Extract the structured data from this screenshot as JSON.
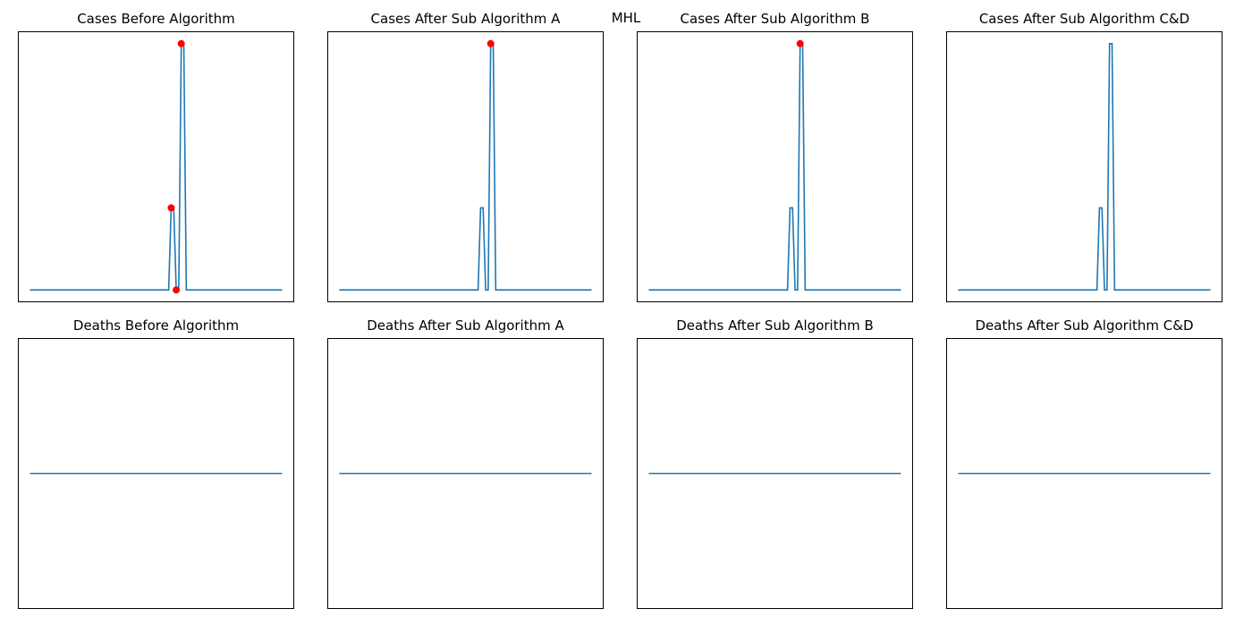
{
  "figure": {
    "suptitle": "MHL"
  },
  "colors": {
    "line": "#1f77b4",
    "highlight": "#ff0000"
  },
  "chart_data": [
    {
      "type": "line",
      "title": "Cases Before Algorithm",
      "axes_visible": false,
      "x": [
        0,
        1,
        2,
        3,
        4,
        5,
        6,
        7,
        8,
        9,
        10,
        11,
        12,
        13,
        14,
        15,
        16,
        17,
        18,
        19,
        20,
        21,
        22,
        23,
        24,
        25,
        26,
        27,
        28,
        29,
        30,
        31,
        32,
        33,
        34,
        35,
        36,
        37,
        38,
        39,
        40,
        41,
        42,
        43,
        44,
        45,
        46,
        47,
        48,
        49,
        50,
        51,
        52,
        53,
        54,
        55,
        56,
        57,
        58,
        59,
        60,
        61,
        62,
        63,
        64,
        65,
        66,
        67,
        68,
        69,
        70,
        71,
        72,
        73,
        74,
        75,
        76,
        77,
        78,
        79,
        80,
        81,
        82,
        83,
        84,
        85,
        86,
        87,
        88,
        89,
        90,
        91,
        92,
        93,
        94,
        95,
        96,
        97,
        98,
        99,
        100
      ],
      "series": [
        {
          "values": [
            0,
            0,
            0,
            0,
            0,
            0,
            0,
            0,
            0,
            0,
            0,
            0,
            0,
            0,
            0,
            0,
            0,
            0,
            0,
            0,
            0,
            0,
            0,
            0,
            0,
            0,
            0,
            0,
            0,
            0,
            0,
            0,
            0,
            0,
            0,
            0,
            0,
            0,
            0,
            0,
            0,
            0,
            0,
            0,
            0,
            0,
            0,
            0,
            0,
            0,
            0,
            0,
            0,
            0,
            0,
            0,
            1,
            1,
            0,
            0,
            3,
            3,
            0,
            0,
            0,
            0,
            0,
            0,
            0,
            0,
            0,
            0,
            0,
            0,
            0,
            0,
            0,
            0,
            0,
            0,
            0,
            0,
            0,
            0,
            0,
            0,
            0,
            0,
            0,
            0,
            0,
            0,
            0,
            0,
            0,
            0,
            0,
            0,
            0,
            0,
            0
          ]
        }
      ],
      "highlight_points": [
        {
          "x": 56,
          "y": 1
        },
        {
          "x": 58,
          "y": 0
        },
        {
          "x": 60,
          "y": 3
        }
      ],
      "ylim": [
        -0.15,
        3.15
      ]
    },
    {
      "type": "line",
      "title": "Cases After Sub Algorithm A",
      "axes_visible": false,
      "x": [
        0,
        1,
        2,
        3,
        4,
        5,
        6,
        7,
        8,
        9,
        10,
        11,
        12,
        13,
        14,
        15,
        16,
        17,
        18,
        19,
        20,
        21,
        22,
        23,
        24,
        25,
        26,
        27,
        28,
        29,
        30,
        31,
        32,
        33,
        34,
        35,
        36,
        37,
        38,
        39,
        40,
        41,
        42,
        43,
        44,
        45,
        46,
        47,
        48,
        49,
        50,
        51,
        52,
        53,
        54,
        55,
        56,
        57,
        58,
        59,
        60,
        61,
        62,
        63,
        64,
        65,
        66,
        67,
        68,
        69,
        70,
        71,
        72,
        73,
        74,
        75,
        76,
        77,
        78,
        79,
        80,
        81,
        82,
        83,
        84,
        85,
        86,
        87,
        88,
        89,
        90,
        91,
        92,
        93,
        94,
        95,
        96,
        97,
        98,
        99,
        100
      ],
      "series": [
        {
          "values": [
            0,
            0,
            0,
            0,
            0,
            0,
            0,
            0,
            0,
            0,
            0,
            0,
            0,
            0,
            0,
            0,
            0,
            0,
            0,
            0,
            0,
            0,
            0,
            0,
            0,
            0,
            0,
            0,
            0,
            0,
            0,
            0,
            0,
            0,
            0,
            0,
            0,
            0,
            0,
            0,
            0,
            0,
            0,
            0,
            0,
            0,
            0,
            0,
            0,
            0,
            0,
            0,
            0,
            0,
            0,
            0,
            1,
            1,
            0,
            0,
            3,
            3,
            0,
            0,
            0,
            0,
            0,
            0,
            0,
            0,
            0,
            0,
            0,
            0,
            0,
            0,
            0,
            0,
            0,
            0,
            0,
            0,
            0,
            0,
            0,
            0,
            0,
            0,
            0,
            0,
            0,
            0,
            0,
            0,
            0,
            0,
            0,
            0,
            0,
            0,
            0
          ]
        }
      ],
      "highlight_points": [
        {
          "x": 60,
          "y": 3
        }
      ],
      "ylim": [
        -0.15,
        3.15
      ]
    },
    {
      "type": "line",
      "title": "Cases After Sub Algorithm B",
      "axes_visible": false,
      "x": [
        0,
        1,
        2,
        3,
        4,
        5,
        6,
        7,
        8,
        9,
        10,
        11,
        12,
        13,
        14,
        15,
        16,
        17,
        18,
        19,
        20,
        21,
        22,
        23,
        24,
        25,
        26,
        27,
        28,
        29,
        30,
        31,
        32,
        33,
        34,
        35,
        36,
        37,
        38,
        39,
        40,
        41,
        42,
        43,
        44,
        45,
        46,
        47,
        48,
        49,
        50,
        51,
        52,
        53,
        54,
        55,
        56,
        57,
        58,
        59,
        60,
        61,
        62,
        63,
        64,
        65,
        66,
        67,
        68,
        69,
        70,
        71,
        72,
        73,
        74,
        75,
        76,
        77,
        78,
        79,
        80,
        81,
        82,
        83,
        84,
        85,
        86,
        87,
        88,
        89,
        90,
        91,
        92,
        93,
        94,
        95,
        96,
        97,
        98,
        99,
        100
      ],
      "series": [
        {
          "values": [
            0,
            0,
            0,
            0,
            0,
            0,
            0,
            0,
            0,
            0,
            0,
            0,
            0,
            0,
            0,
            0,
            0,
            0,
            0,
            0,
            0,
            0,
            0,
            0,
            0,
            0,
            0,
            0,
            0,
            0,
            0,
            0,
            0,
            0,
            0,
            0,
            0,
            0,
            0,
            0,
            0,
            0,
            0,
            0,
            0,
            0,
            0,
            0,
            0,
            0,
            0,
            0,
            0,
            0,
            0,
            0,
            1,
            1,
            0,
            0,
            3,
            3,
            0,
            0,
            0,
            0,
            0,
            0,
            0,
            0,
            0,
            0,
            0,
            0,
            0,
            0,
            0,
            0,
            0,
            0,
            0,
            0,
            0,
            0,
            0,
            0,
            0,
            0,
            0,
            0,
            0,
            0,
            0,
            0,
            0,
            0,
            0,
            0,
            0,
            0,
            0
          ]
        }
      ],
      "highlight_points": [
        {
          "x": 60,
          "y": 3
        }
      ],
      "ylim": [
        -0.15,
        3.15
      ]
    },
    {
      "type": "line",
      "title": "Cases After Sub Algorithm C&D",
      "axes_visible": false,
      "x": [
        0,
        1,
        2,
        3,
        4,
        5,
        6,
        7,
        8,
        9,
        10,
        11,
        12,
        13,
        14,
        15,
        16,
        17,
        18,
        19,
        20,
        21,
        22,
        23,
        24,
        25,
        26,
        27,
        28,
        29,
        30,
        31,
        32,
        33,
        34,
        35,
        36,
        37,
        38,
        39,
        40,
        41,
        42,
        43,
        44,
        45,
        46,
        47,
        48,
        49,
        50,
        51,
        52,
        53,
        54,
        55,
        56,
        57,
        58,
        59,
        60,
        61,
        62,
        63,
        64,
        65,
        66,
        67,
        68,
        69,
        70,
        71,
        72,
        73,
        74,
        75,
        76,
        77,
        78,
        79,
        80,
        81,
        82,
        83,
        84,
        85,
        86,
        87,
        88,
        89,
        90,
        91,
        92,
        93,
        94,
        95,
        96,
        97,
        98,
        99,
        100
      ],
      "series": [
        {
          "values": [
            0,
            0,
            0,
            0,
            0,
            0,
            0,
            0,
            0,
            0,
            0,
            0,
            0,
            0,
            0,
            0,
            0,
            0,
            0,
            0,
            0,
            0,
            0,
            0,
            0,
            0,
            0,
            0,
            0,
            0,
            0,
            0,
            0,
            0,
            0,
            0,
            0,
            0,
            0,
            0,
            0,
            0,
            0,
            0,
            0,
            0,
            0,
            0,
            0,
            0,
            0,
            0,
            0,
            0,
            0,
            0,
            1,
            1,
            0,
            0,
            3,
            3,
            0,
            0,
            0,
            0,
            0,
            0,
            0,
            0,
            0,
            0,
            0,
            0,
            0,
            0,
            0,
            0,
            0,
            0,
            0,
            0,
            0,
            0,
            0,
            0,
            0,
            0,
            0,
            0,
            0,
            0,
            0,
            0,
            0,
            0,
            0,
            0,
            0,
            0,
            0
          ]
        }
      ],
      "highlight_points": [],
      "ylim": [
        -0.15,
        3.15
      ]
    },
    {
      "type": "line",
      "title": "Deaths Before Algorithm",
      "axes_visible": false,
      "x": [
        0,
        100
      ],
      "series": [
        {
          "values": [
            0,
            0
          ]
        }
      ],
      "highlight_points": [],
      "ylim": [
        -0.055,
        0.055
      ]
    },
    {
      "type": "line",
      "title": "Deaths After Sub Algorithm A",
      "axes_visible": false,
      "x": [
        0,
        100
      ],
      "series": [
        {
          "values": [
            0,
            0
          ]
        }
      ],
      "highlight_points": [],
      "ylim": [
        -0.055,
        0.055
      ]
    },
    {
      "type": "line",
      "title": "Deaths After Sub Algorithm B",
      "axes_visible": false,
      "x": [
        0,
        100
      ],
      "series": [
        {
          "values": [
            0,
            0
          ]
        }
      ],
      "highlight_points": [],
      "ylim": [
        -0.055,
        0.055
      ]
    },
    {
      "type": "line",
      "title": "Deaths After Sub Algorithm C&D",
      "axes_visible": false,
      "x": [
        0,
        100
      ],
      "series": [
        {
          "values": [
            0,
            0
          ]
        }
      ],
      "highlight_points": [],
      "ylim": [
        -0.055,
        0.055
      ]
    }
  ]
}
